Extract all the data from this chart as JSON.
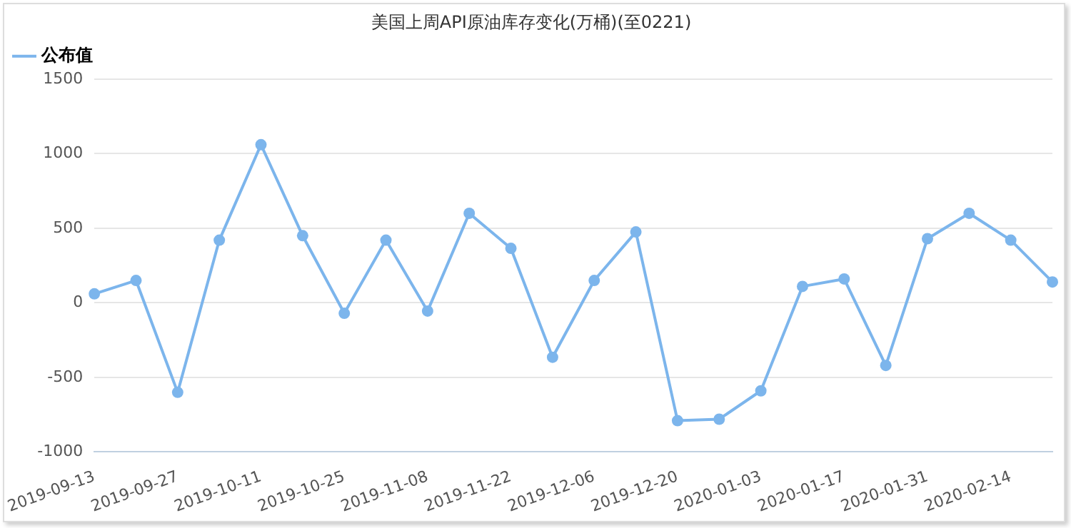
{
  "chart_data": {
    "type": "line",
    "title": "美国上周API原油库存变化(万桶)(至0221)",
    "categories": [
      "2019-09-13",
      null,
      "2019-09-27",
      null,
      "2019-10-11",
      null,
      "2019-10-25",
      null,
      "2019-11-08",
      null,
      "2019-11-22",
      null,
      "2019-12-06",
      null,
      "2019-12-20",
      null,
      "2020-01-03",
      null,
      "2020-01-17",
      null,
      "2020-01-31",
      null,
      "2020-02-14",
      null
    ],
    "series": [
      {
        "name": "公布值",
        "color": "#7cb5ec",
        "values": [
          60,
          150,
          -600,
          420,
          1060,
          450,
          -70,
          420,
          -55,
          600,
          365,
          -365,
          150,
          475,
          -790,
          -780,
          -590,
          110,
          160,
          -420,
          430,
          600,
          420,
          140
        ]
      }
    ],
    "ylim": [
      -1000,
      1500
    ],
    "yticks": [
      -1000,
      -500,
      0,
      500,
      1000,
      1500
    ],
    "grid": "y",
    "legend": "top left",
    "marker": "circle",
    "line_style": "solid"
  }
}
